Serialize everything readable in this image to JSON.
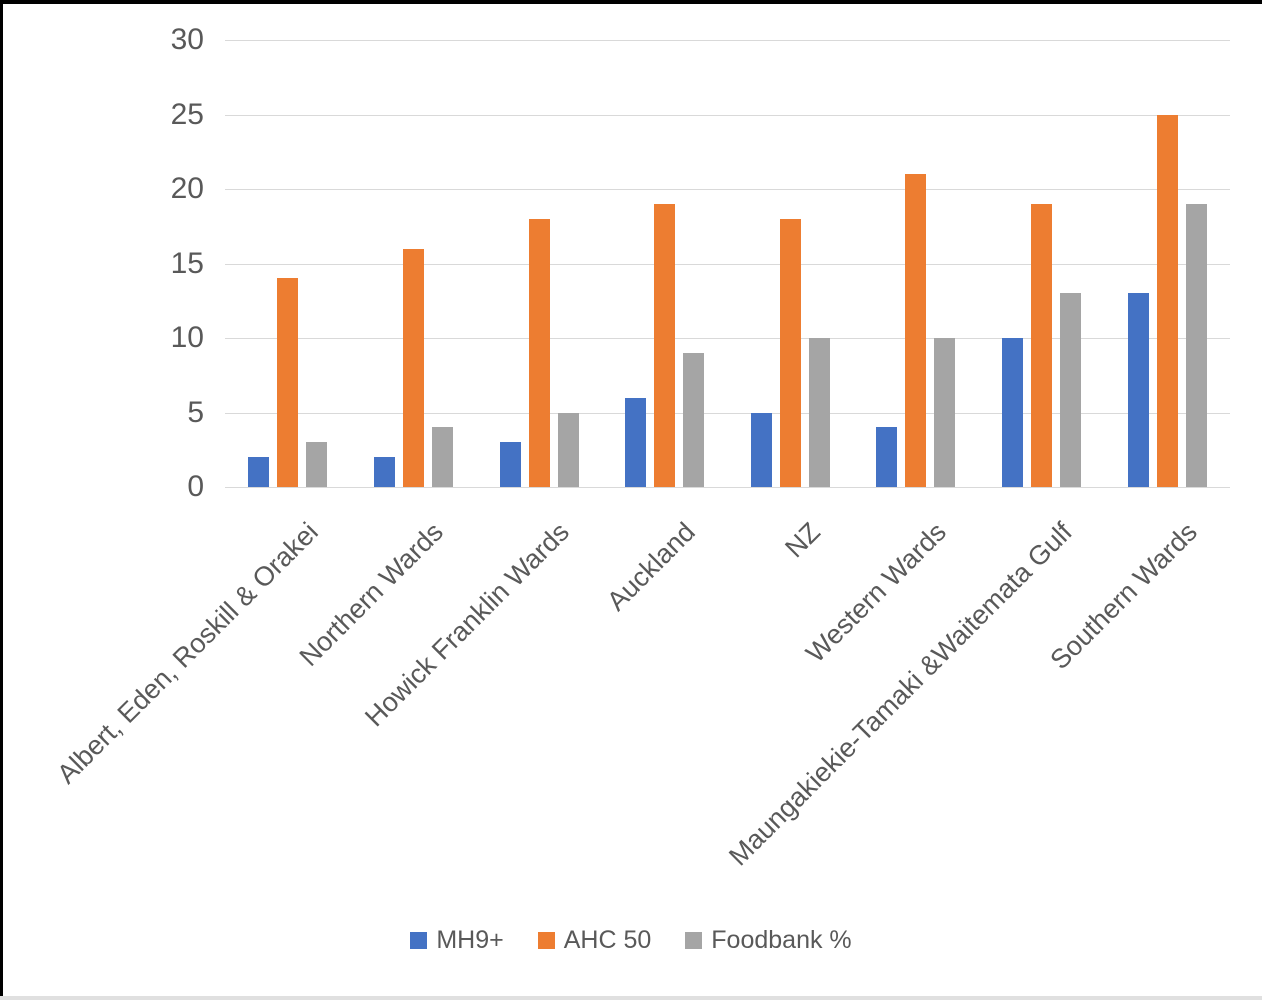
{
  "chart_data": {
    "type": "bar",
    "title": "",
    "xlabel": "",
    "ylabel": "",
    "categories": [
      "Albert, Eden, Roskill & Orakei",
      "Northern Wards",
      "Howick Franklin Wards",
      "Auckland",
      "NZ",
      "Western Wards",
      "Maungakiekie-Tamaki &Waitemata Gulf",
      "Southern Wards"
    ],
    "series": [
      {
        "name": "MH9+",
        "color": "#4472C4",
        "values": [
          2,
          2,
          3,
          6,
          5,
          4,
          10,
          13
        ]
      },
      {
        "name": "AHC 50",
        "color": "#ED7D31",
        "values": [
          14,
          16,
          18,
          19,
          18,
          21,
          19,
          25
        ]
      },
      {
        "name": "Foodbank %",
        "color": "#A5A5A5",
        "values": [
          3,
          4,
          5,
          9,
          10,
          10,
          13,
          19
        ]
      }
    ],
    "ylim": [
      0,
      30
    ],
    "yticks": [
      0,
      5,
      10,
      15,
      20,
      25,
      30
    ],
    "grid": true,
    "legend_position": "bottom",
    "colors": {
      "grid": "#d9d9d9",
      "axis_text": "#595959",
      "background": "#ffffff"
    }
  }
}
